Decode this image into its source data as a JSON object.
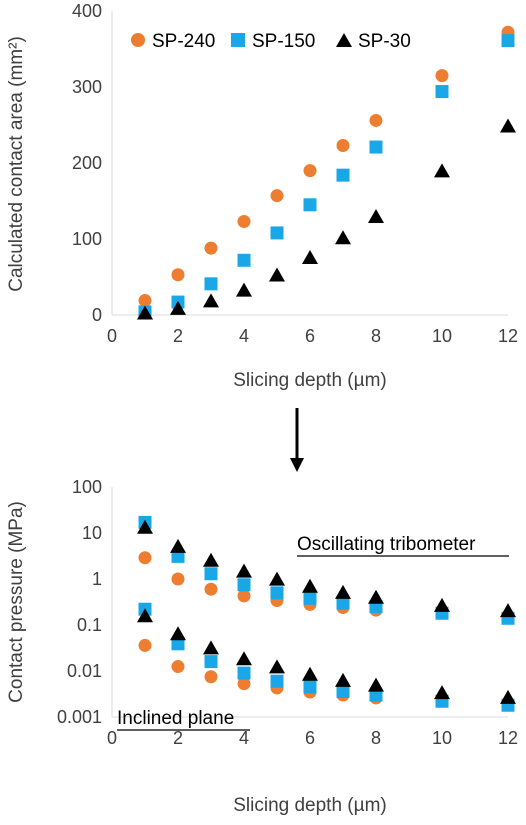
{
  "colors": {
    "SP-240": "#ed7d31",
    "SP-150": "#1aa7e8",
    "SP-30": "#000000",
    "axis": "#d9d9d9",
    "text": "#404040"
  },
  "chart_data": [
    {
      "type": "scatter",
      "xlabel": "Slicing depth (µm)",
      "ylabel": "Calculated contact area (mm²)",
      "xlim": [
        0,
        12
      ],
      "ylim": [
        0,
        400
      ],
      "xticks": [
        "0",
        "2",
        "4",
        "6",
        "8",
        "10",
        "12"
      ],
      "yticks": [
        "0",
        "100",
        "200",
        "300",
        "400"
      ],
      "grid": false,
      "legend_position": "top-left",
      "series": [
        {
          "name": "SP-240",
          "marker": "circle",
          "x": [
            1,
            2,
            3,
            4,
            5,
            6,
            7,
            8,
            10,
            12
          ],
          "y": [
            19,
            53,
            88,
            123,
            157,
            190,
            223,
            256,
            315,
            372
          ]
        },
        {
          "name": "SP-150",
          "marker": "square",
          "x": [
            1,
            2,
            3,
            4,
            5,
            6,
            7,
            8,
            10,
            12
          ],
          "y": [
            4,
            17,
            41,
            72,
            108,
            145,
            184,
            221,
            294,
            361
          ]
        },
        {
          "name": "SP-30",
          "marker": "triangle",
          "x": [
            1,
            2,
            3,
            4,
            5,
            6,
            7,
            8,
            10,
            12
          ],
          "y": [
            2,
            8,
            18,
            32,
            52,
            75,
            101,
            129,
            189,
            248
          ]
        }
      ]
    },
    {
      "type": "scatter",
      "xlabel": "Slicing depth (µm)",
      "ylabel": "Contact pressure (MPa)",
      "yscale": "log",
      "xlim": [
        0,
        12
      ],
      "ylim": [
        0.001,
        100
      ],
      "xticks": [
        "0",
        "2",
        "4",
        "6",
        "8",
        "10",
        "12"
      ],
      "yticks": [
        "0.001",
        "0.01",
        "0.1",
        "1",
        "10",
        "100"
      ],
      "grid": false,
      "annotations": [
        "Oscillating tribometer",
        "Inclined plane"
      ],
      "series": [
        {
          "name": "SP-240",
          "group": "Oscillating tribometer",
          "marker": "circle",
          "x": [
            1,
            2,
            3,
            4,
            5,
            6,
            7,
            8,
            10,
            12
          ],
          "y": [
            2.9,
            1.0,
            0.6,
            0.43,
            0.34,
            0.28,
            0.24,
            0.21,
            0.18,
            0.15
          ]
        },
        {
          "name": "SP-150",
          "group": "Oscillating tribometer",
          "marker": "square",
          "x": [
            1,
            2,
            3,
            4,
            5,
            6,
            7,
            8,
            10,
            12
          ],
          "y": [
            17,
            3.1,
            1.3,
            0.75,
            0.5,
            0.38,
            0.3,
            0.25,
            0.18,
            0.14
          ]
        },
        {
          "name": "SP-30",
          "group": "Oscillating tribometer",
          "marker": "triangle",
          "x": [
            1,
            2,
            3,
            4,
            5,
            6,
            7,
            8,
            10,
            12
          ],
          "y": [
            13,
            5.0,
            2.5,
            1.45,
            0.97,
            0.68,
            0.5,
            0.39,
            0.26,
            0.2
          ]
        },
        {
          "name": "SP-240",
          "group": "Inclined plane",
          "marker": "circle",
          "x": [
            1,
            2,
            3,
            4,
            5,
            6,
            7,
            8,
            10,
            12
          ],
          "y": [
            0.036,
            0.0125,
            0.0075,
            0.0053,
            0.0043,
            0.0035,
            0.003,
            0.0026,
            0.0022,
            0.0019
          ]
        },
        {
          "name": "SP-150",
          "group": "Inclined plane",
          "marker": "square",
          "x": [
            1,
            2,
            3,
            4,
            5,
            6,
            7,
            8,
            10,
            12
          ],
          "y": [
            0.22,
            0.039,
            0.016,
            0.009,
            0.006,
            0.0045,
            0.0036,
            0.003,
            0.0022,
            0.0018
          ]
        },
        {
          "name": "SP-30",
          "group": "Inclined plane",
          "marker": "triangle",
          "x": [
            1,
            2,
            3,
            4,
            5,
            6,
            7,
            8,
            10,
            12
          ],
          "y": [
            0.155,
            0.063,
            0.031,
            0.018,
            0.012,
            0.0083,
            0.0061,
            0.0048,
            0.0033,
            0.0026
          ]
        }
      ]
    }
  ]
}
